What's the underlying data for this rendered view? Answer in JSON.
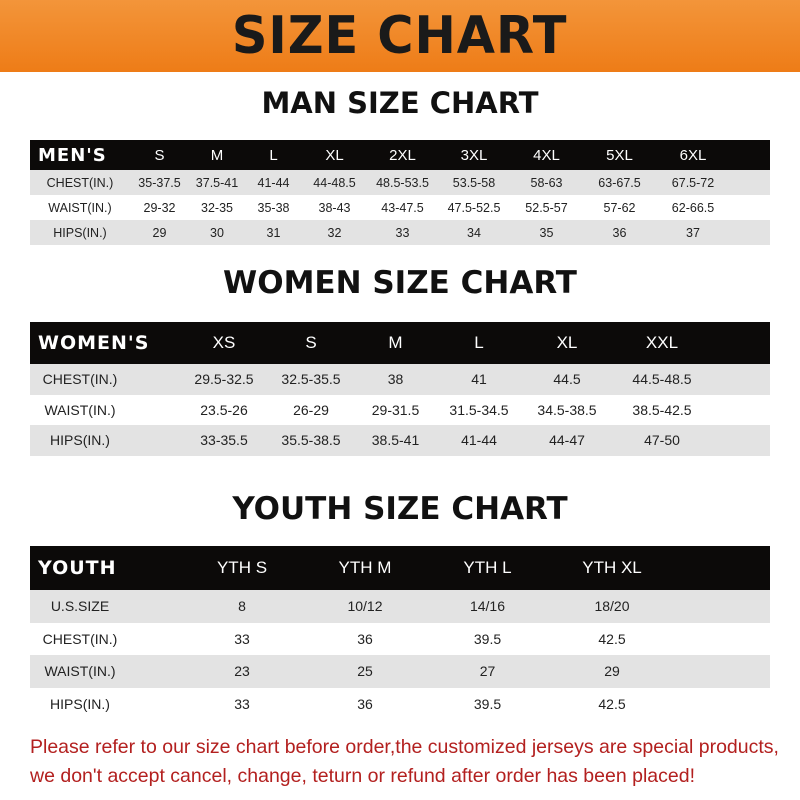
{
  "banner": {
    "title": "SIZE CHART",
    "color": "#ee7c17"
  },
  "men": {
    "title": "MAN SIZE CHART",
    "header": [
      "MEN'S",
      "S",
      "M",
      "L",
      "XL",
      "2XL",
      "3XL",
      "4XL",
      "5XL",
      "6XL"
    ],
    "rows": [
      [
        "CHEST(IN.)",
        "35-37.5",
        "37.5-41",
        "41-44",
        "44-48.5",
        "48.5-53.5",
        "53.5-58",
        "58-63",
        "63-67.5",
        "67.5-72"
      ],
      [
        "WAIST(IN.)",
        "29-32",
        "32-35",
        "35-38",
        "38-43",
        "43-47.5",
        "47.5-52.5",
        "52.5-57",
        "57-62",
        "62-66.5"
      ],
      [
        "HIPS(IN.)",
        "29",
        "30",
        "31",
        "32",
        "33",
        "34",
        "35",
        "36",
        "37"
      ]
    ]
  },
  "women": {
    "title": "WOMEN SIZE CHART",
    "header": [
      "WOMEN'S",
      "XS",
      "S",
      "M",
      "L",
      "XL",
      "XXL"
    ],
    "rows": [
      [
        "CHEST(IN.)",
        "29.5-32.5",
        "32.5-35.5",
        "38",
        "41",
        "44.5",
        "44.5-48.5"
      ],
      [
        "WAIST(IN.)",
        "23.5-26",
        "26-29",
        "29-31.5",
        "31.5-34.5",
        "34.5-38.5",
        "38.5-42.5"
      ],
      [
        "HIPS(IN.)",
        "33-35.5",
        "35.5-38.5",
        "38.5-41",
        "41-44",
        "44-47",
        "47-50"
      ]
    ]
  },
  "youth": {
    "title": "YOUTH SIZE CHART",
    "header": [
      "YOUTH",
      "YTH S",
      "YTH M",
      "YTH L",
      "YTH XL"
    ],
    "rows": [
      [
        "U.S.SIZE",
        "8",
        "10/12",
        "14/16",
        "18/20"
      ],
      [
        "CHEST(IN.)",
        "33",
        "36",
        "39.5",
        "42.5"
      ],
      [
        "WAIST(IN.)",
        "23",
        "25",
        "27",
        "29"
      ],
      [
        "HIPS(IN.)",
        "33",
        "36",
        "39.5",
        "42.5"
      ]
    ]
  },
  "notice": {
    "line1": "Please refer to our size chart before order,the customized jerseys are special products,",
    "line2": "we don't accept cancel, change, teturn or refund after order has been placed!",
    "color": "#b3201f"
  }
}
